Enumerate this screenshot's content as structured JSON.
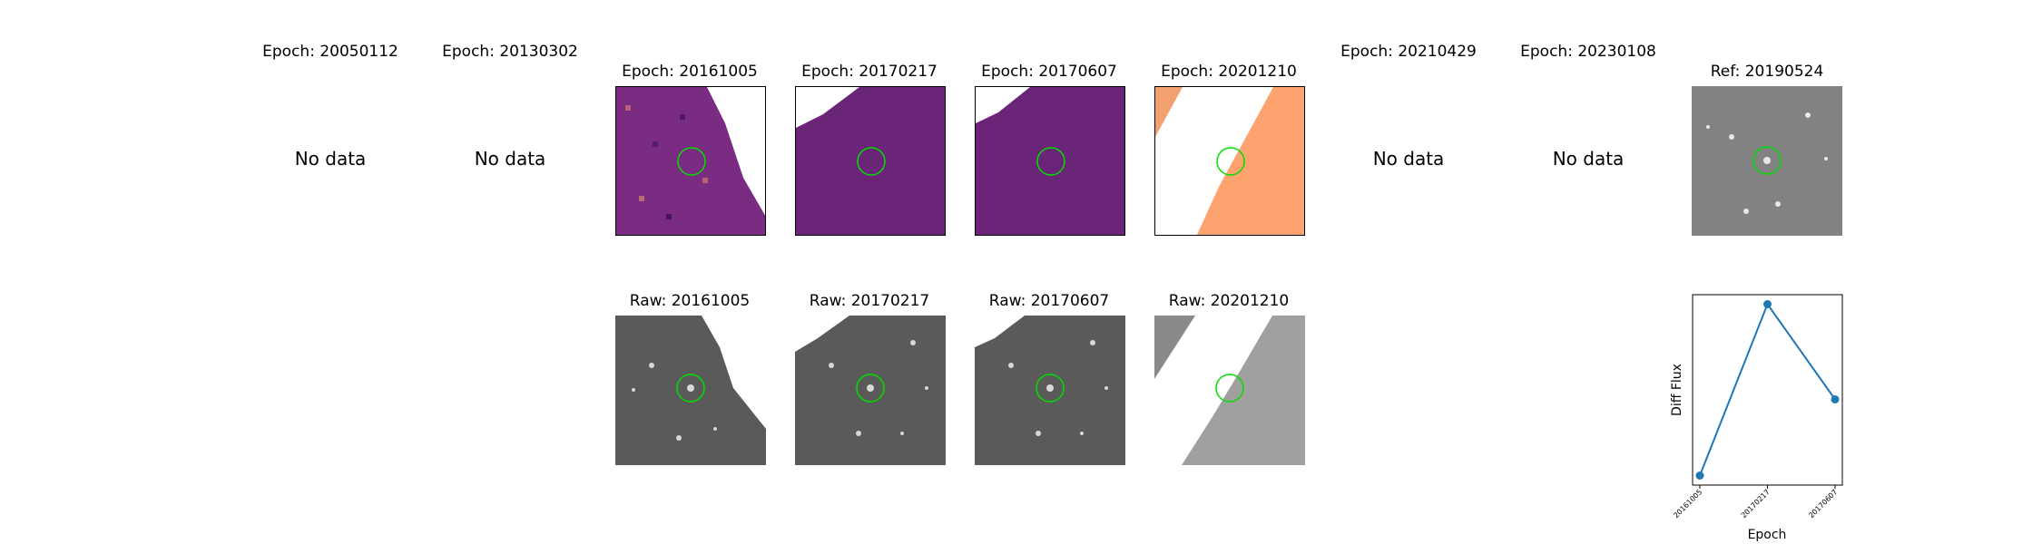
{
  "top_row": [
    {
      "title": "Epoch: 20050112",
      "status": "No data"
    },
    {
      "title": "Epoch: 20130302",
      "status": "No data"
    },
    {
      "title": "Epoch: 20161005",
      "status": ""
    },
    {
      "title": "Epoch: 20170217",
      "status": ""
    },
    {
      "title": "Epoch: 20170607",
      "status": ""
    },
    {
      "title": "Epoch: 20201210",
      "status": ""
    },
    {
      "title": "Epoch: 20210429",
      "status": "No data"
    },
    {
      "title": "Epoch: 20230108",
      "status": "No data"
    },
    {
      "title": "Ref: 20190524",
      "status": ""
    }
  ],
  "bottom_row": [
    {
      "title": "Raw: 20161005"
    },
    {
      "title": "Raw: 20170217"
    },
    {
      "title": "Raw: 20170607"
    },
    {
      "title": "Raw: 20201210"
    }
  ],
  "colors": {
    "target_circle": "#00e000",
    "line": "#1f77b4",
    "diff_light": "#fca36f",
    "diff_dark": "#5a1a78"
  },
  "chart_data": {
    "type": "line",
    "categories": [
      "20161005",
      "20170217",
      "20170607"
    ],
    "values": [
      0.05,
      0.95,
      0.45
    ],
    "xlabel": "Epoch",
    "ylabel": "Diff Flux",
    "ylim": [
      0,
      1
    ],
    "grid": false
  }
}
